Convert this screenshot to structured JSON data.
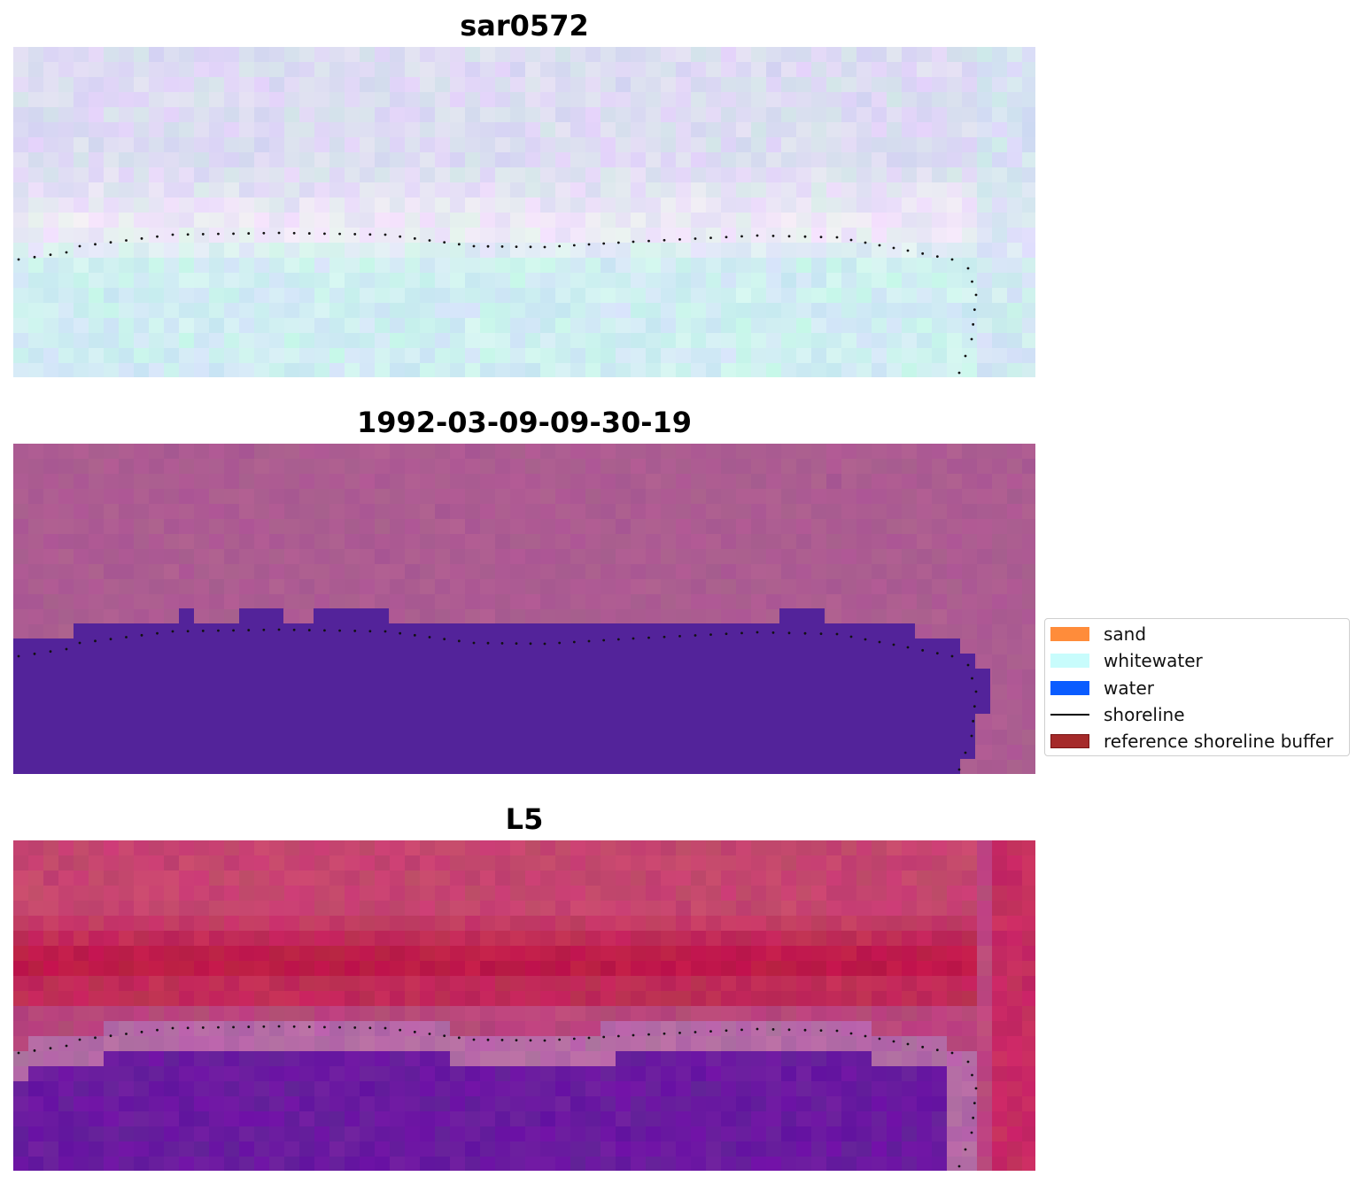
{
  "panels": [
    {
      "title": "sar0572",
      "style": "rgb",
      "colors": {
        "base": "#d2e6f2",
        "upper": "#dcdcf2",
        "band": "#efeaf6",
        "lower": "#cfeef2"
      }
    },
    {
      "title": "1992-03-09-09-30-19",
      "style": "classified",
      "colors": {
        "land": "#aa5a92",
        "land_alt": "#b2628f",
        "water": "#53239a"
      }
    },
    {
      "title": "L5",
      "style": "index",
      "colors": {
        "top": "#c5456f",
        "dark": "#be1a48",
        "band": "#b46aa6",
        "water": "#6a1aa0",
        "edge": "#c8245a"
      }
    }
  ],
  "legend": {
    "items": [
      {
        "label": "sand",
        "color": "#ff8c3a",
        "kind": "patch"
      },
      {
        "label": "whitewater",
        "color": "#c8fcfc",
        "kind": "patch"
      },
      {
        "label": "water",
        "color": "#0a5cff",
        "kind": "patch"
      },
      {
        "label": "shoreline",
        "color": "#000000",
        "kind": "line"
      },
      {
        "label": "reference shoreline buffer",
        "color": "#a52a2a",
        "kind": "patch"
      }
    ]
  }
}
